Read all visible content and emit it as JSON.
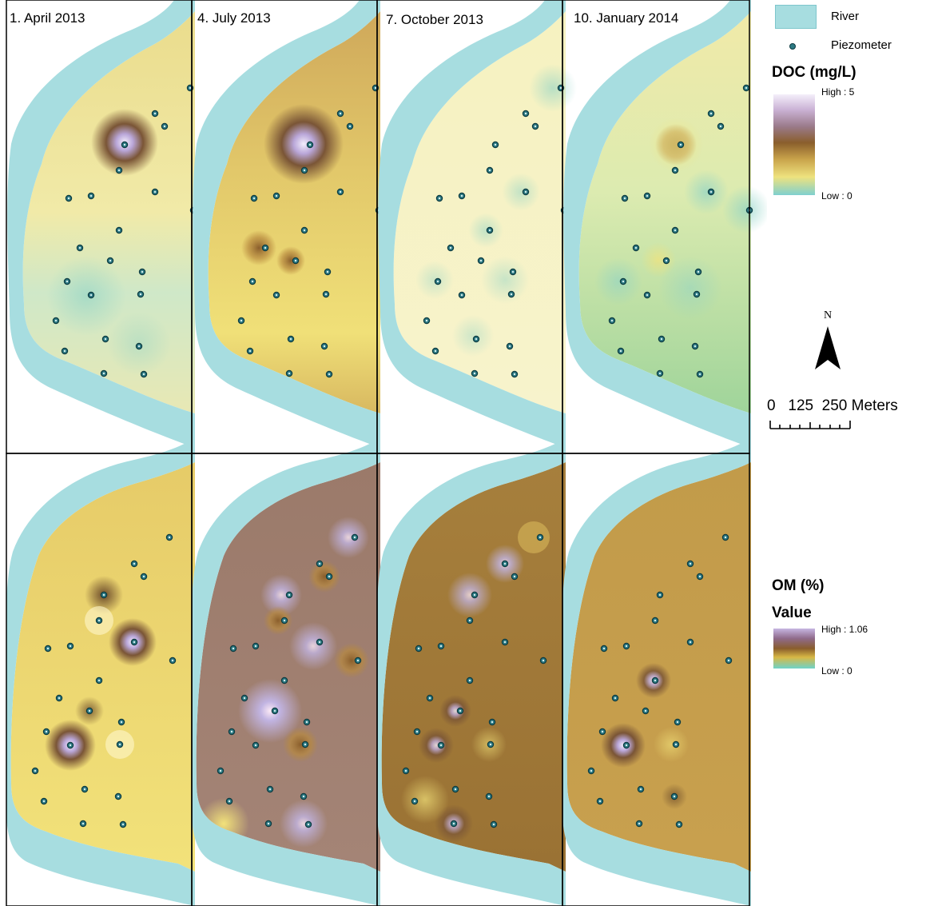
{
  "panels": [
    {
      "label": "1. April 2013"
    },
    {
      "label": "4. July 2013"
    },
    {
      "label": "7. October 2013"
    },
    {
      "label": "10. January 2014"
    }
  ],
  "legend": {
    "river_label": "River",
    "piezometer_label": "Piezometer",
    "doc": {
      "title": "DOC (mg/L)",
      "high": "High : 5",
      "low": "Low : 0"
    },
    "north_label": "N",
    "scale": {
      "label": "0   125  250 Meters",
      "units": "Meters"
    },
    "om": {
      "title": "OM (%)",
      "subtitle": "Value",
      "high": "High : 1.06",
      "low": "Low : 0"
    }
  },
  "colors": {
    "river": "#a7dde0",
    "piezometer": "#2d7a83",
    "panel_border": "#000000"
  },
  "piezometer_count": 28
}
